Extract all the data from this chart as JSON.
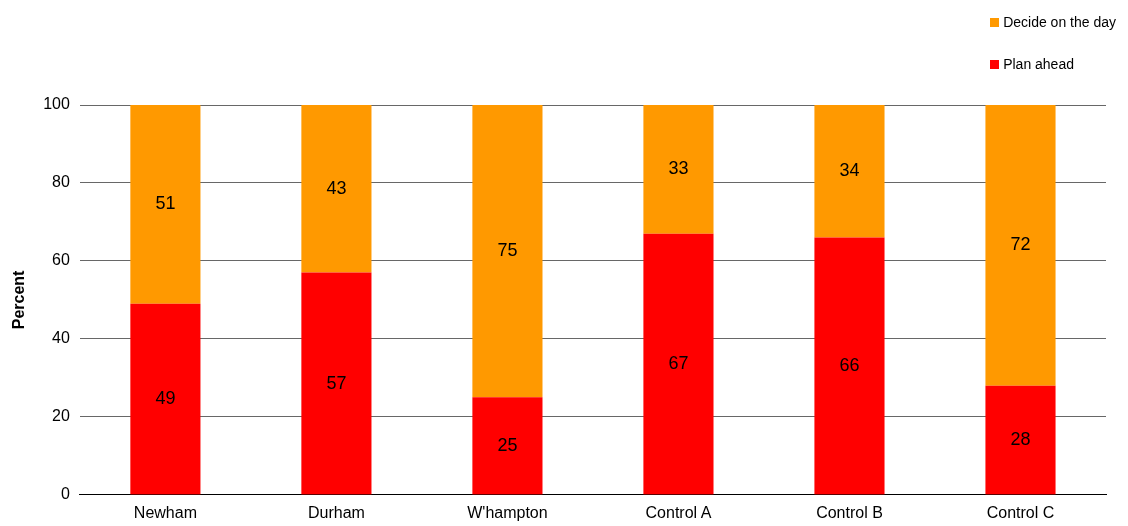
{
  "chart_data": {
    "type": "bar",
    "stacked": true,
    "ylabel": "Percent",
    "categories": [
      "Newham",
      "Durham",
      "W'hampton",
      "Control A",
      "Control B",
      "Control C"
    ],
    "series": [
      {
        "name": "Plan ahead",
        "color": "#ff0000",
        "values": [
          49,
          57,
          25,
          67,
          66,
          28
        ]
      },
      {
        "name": "Decide on the day",
        "color": "#ff9900",
        "values": [
          51,
          43,
          75,
          33,
          34,
          72
        ]
      }
    ],
    "ylim": [
      0,
      100
    ],
    "yticks": [
      0,
      20,
      40,
      60,
      80,
      100
    ],
    "grid": "y",
    "legend": "top right",
    "data_labels": true
  }
}
